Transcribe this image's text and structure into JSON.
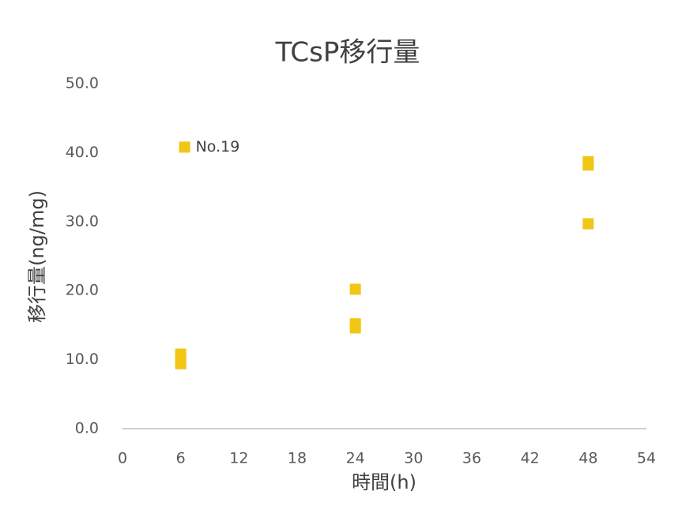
{
  "chart_data": {
    "type": "scatter",
    "title": "TCsP移行量",
    "xlabel": "時間(h)",
    "ylabel": "移行量(ng/mg)",
    "x": [
      6,
      6,
      6,
      6.4,
      24,
      24,
      24,
      48,
      48,
      48
    ],
    "values": [
      10.8,
      10.0,
      9.4,
      40.8,
      20.2,
      15.2,
      14.6,
      38.7,
      38.2,
      29.7
    ],
    "point_labels": [
      null,
      null,
      null,
      "No.19",
      null,
      null,
      null,
      null,
      null,
      null
    ],
    "color": "#f2c614",
    "xlim": [
      0,
      54
    ],
    "xticks": [
      0,
      6,
      12,
      18,
      24,
      30,
      36,
      42,
      48,
      54
    ],
    "ylim": [
      0,
      50
    ],
    "yticks": [
      {
        "value": 0,
        "label": "0.0"
      },
      {
        "value": 10,
        "label": "10.0"
      },
      {
        "value": 20,
        "label": "20.0"
      },
      {
        "value": 30,
        "label": "30.0"
      },
      {
        "value": 40,
        "label": "40.0"
      },
      {
        "value": 50,
        "label": "50.0"
      }
    ],
    "grid": false
  }
}
